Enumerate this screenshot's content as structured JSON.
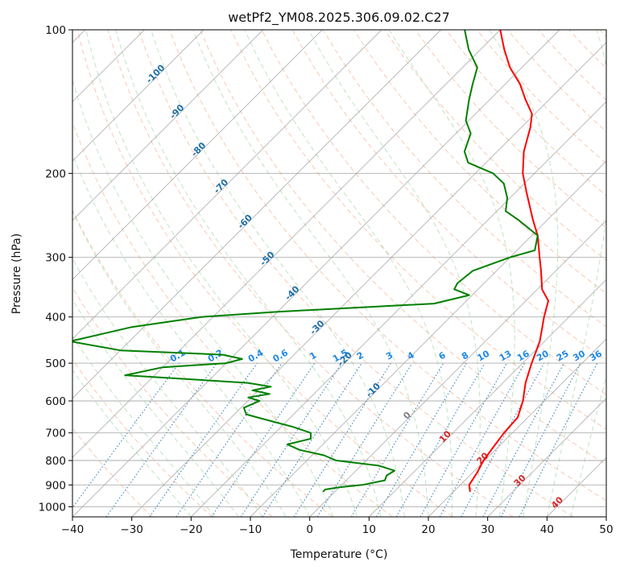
{
  "chart_data": {
    "type": "line",
    "title": "wetPf2_YM08.2025.306.09.02.C27",
    "xlabel": "Temperature (°C)",
    "ylabel": "Pressure (hPa)",
    "xlim": [
      -40,
      50
    ],
    "ylim": [
      1050,
      100
    ],
    "y_scale": "log",
    "skew_t": true,
    "grid": true,
    "x_ticks": [
      -40,
      -30,
      -20,
      -10,
      0,
      10,
      20,
      30,
      40,
      50
    ],
    "y_ticks": [
      100,
      200,
      300,
      400,
      500,
      600,
      700,
      800,
      900,
      1000
    ],
    "colors": {
      "temperature": "#ff0000",
      "dewpoint": "#008000",
      "isotherm": "#a0a0a0",
      "dry_adiabat": "#f4a582",
      "moist_adiabat": "#a6d8a6",
      "mixing_ratio": "#1f77b4",
      "label_dark_blue": "#1f6fa8",
      "label_blue": "#1e88e5",
      "label_red": "#d62728",
      "label_gray": "#808080"
    },
    "isotherm_labels": [
      "-100",
      "-90",
      "-80",
      "-70",
      "-60",
      "-50",
      "-40",
      "-30",
      "-20",
      "-10",
      "0",
      "10",
      "20",
      "30",
      "40"
    ],
    "mixing_ratio_labels": [
      "0.1",
      "0.2",
      "0.4",
      "0.6",
      "1",
      "1.5",
      "2",
      "3",
      "4",
      "6",
      "8",
      "10",
      "13",
      "16",
      "20",
      "25",
      "30",
      "36"
    ],
    "series": [
      {
        "id": "temperature",
        "color": "#ff0000",
        "points": [
          [
            930,
            22.8
          ],
          [
            900,
            21.5
          ],
          [
            850,
            20.8
          ],
          [
            800,
            19.8
          ],
          [
            750,
            19.2
          ],
          [
            700,
            18.6
          ],
          [
            650,
            18.3
          ],
          [
            600,
            16.4
          ],
          [
            550,
            13.8
          ],
          [
            500,
            11.5
          ],
          [
            450,
            9.2
          ],
          [
            400,
            5.8
          ],
          [
            370,
            3.8
          ],
          [
            350,
            0.8
          ],
          [
            320,
            -2.5
          ],
          [
            300,
            -5.0
          ],
          [
            270,
            -9.0
          ],
          [
            250,
            -12.5
          ],
          [
            220,
            -18.0
          ],
          [
            200,
            -22.0
          ],
          [
            180,
            -25.5
          ],
          [
            160,
            -28.5
          ],
          [
            150,
            -30.5
          ],
          [
            140,
            -34.0
          ],
          [
            130,
            -37.5
          ],
          [
            120,
            -42.0
          ],
          [
            110,
            -46.0
          ],
          [
            100,
            -50.0
          ]
        ]
      },
      {
        "id": "dewpoint",
        "color": "#008000",
        "points": [
          [
            930,
            -2.0
          ],
          [
            920,
            -2.0
          ],
          [
            910,
            0.0
          ],
          [
            900,
            3.5
          ],
          [
            880,
            6.5
          ],
          [
            860,
            6.0
          ],
          [
            840,
            6.5
          ],
          [
            820,
            3.0
          ],
          [
            800,
            -5.0
          ],
          [
            780,
            -8.0
          ],
          [
            760,
            -13.0
          ],
          [
            740,
            -16.0
          ],
          [
            720,
            -13.0
          ],
          [
            700,
            -14.0
          ],
          [
            680,
            -18.0
          ],
          [
            660,
            -23.0
          ],
          [
            650,
            -25.5
          ],
          [
            640,
            -28.0
          ],
          [
            620,
            -29.5
          ],
          [
            600,
            -28.0
          ],
          [
            590,
            -30.5
          ],
          [
            580,
            -27.5
          ],
          [
            570,
            -31.0
          ],
          [
            560,
            -28.5
          ],
          [
            550,
            -33.0
          ],
          [
            530,
            -55.0
          ],
          [
            510,
            -50.0
          ],
          [
            500,
            -40.0
          ],
          [
            490,
            -38.0
          ],
          [
            480,
            -42.0
          ],
          [
            470,
            -60.0
          ],
          [
            450,
            -70.0
          ],
          [
            420,
            -62.0
          ],
          [
            400,
            -52.0
          ],
          [
            390,
            -40.0
          ],
          [
            375,
            -15.0
          ],
          [
            360,
            -10.5
          ],
          [
            350,
            -14.0
          ],
          [
            340,
            -14.5
          ],
          [
            320,
            -14.0
          ],
          [
            300,
            -10.0
          ],
          [
            290,
            -7.0
          ],
          [
            270,
            -9.0
          ],
          [
            250,
            -15.0
          ],
          [
            240,
            -18.5
          ],
          [
            225,
            -20.5
          ],
          [
            210,
            -23.5
          ],
          [
            200,
            -27.0
          ],
          [
            190,
            -33.0
          ],
          [
            180,
            -35.5
          ],
          [
            165,
            -37.5
          ],
          [
            155,
            -40.5
          ],
          [
            140,
            -43.5
          ],
          [
            130,
            -45.5
          ],
          [
            120,
            -47.5
          ],
          [
            110,
            -52.0
          ],
          [
            100,
            -56.0
          ]
        ]
      }
    ]
  }
}
